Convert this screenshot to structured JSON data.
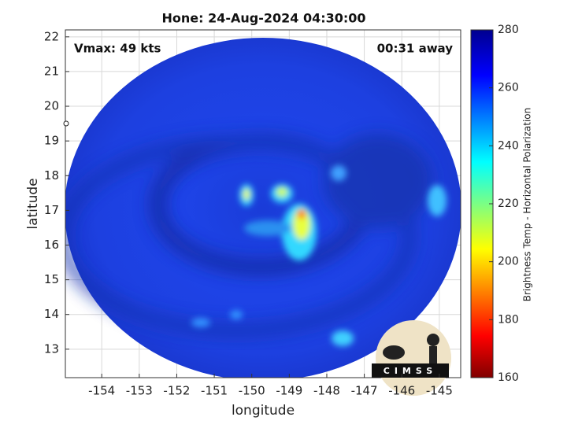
{
  "chart_data": {
    "type": "image-map",
    "title": "Hone: 24-Aug-2024 04:30:00",
    "xlabel": "longitude",
    "ylabel": "latitude",
    "xlim": [
      -154.97,
      -144.43
    ],
    "ylim": [
      12.18,
      22.2
    ],
    "xticks": [
      -154,
      -153,
      -152,
      -151,
      -150,
      -149,
      -148,
      -147,
      -146,
      -145
    ],
    "yticks": [
      13,
      14,
      15,
      16,
      17,
      18,
      19,
      20,
      21,
      22
    ],
    "grid": true,
    "annotations": [
      "Vmax: 49 kts",
      "00:31 away"
    ],
    "colorbar": {
      "label": "Brightness Temp - Horizontal Polarization",
      "lim": [
        160,
        280
      ],
      "ticks": [
        160,
        180,
        200,
        220,
        240,
        260,
        280
      ]
    },
    "logo": "CIMSS"
  }
}
